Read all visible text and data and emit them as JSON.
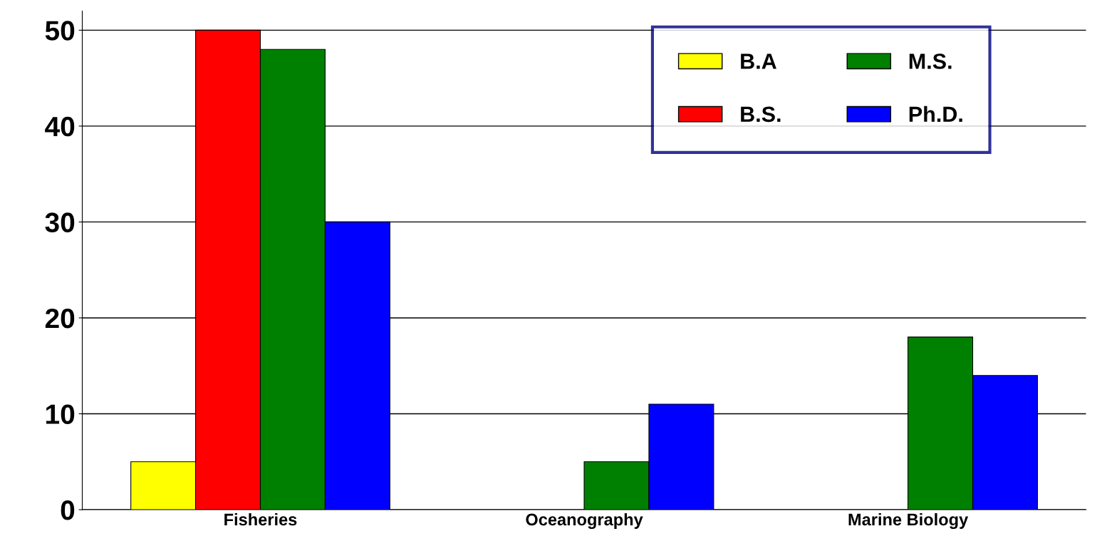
{
  "chart_data": {
    "type": "bar",
    "categories": [
      "Fisheries",
      "Oceanography",
      "Marine Biology"
    ],
    "series": [
      {
        "name": "B.A",
        "color": "#ffff00",
        "values": [
          5,
          null,
          null
        ]
      },
      {
        "name": "B.S.",
        "color": "#ff0000",
        "values": [
          50,
          null,
          null
        ]
      },
      {
        "name": "M.S.",
        "color": "#008000",
        "values": [
          48,
          5,
          18
        ]
      },
      {
        "name": "Ph.D.",
        "color": "#0000ff",
        "values": [
          30,
          11,
          14
        ]
      }
    ],
    "ylim": [
      0,
      52
    ],
    "yticks": [
      0,
      10,
      20,
      30,
      40,
      50
    ],
    "grid": "y",
    "legend": "top right"
  }
}
